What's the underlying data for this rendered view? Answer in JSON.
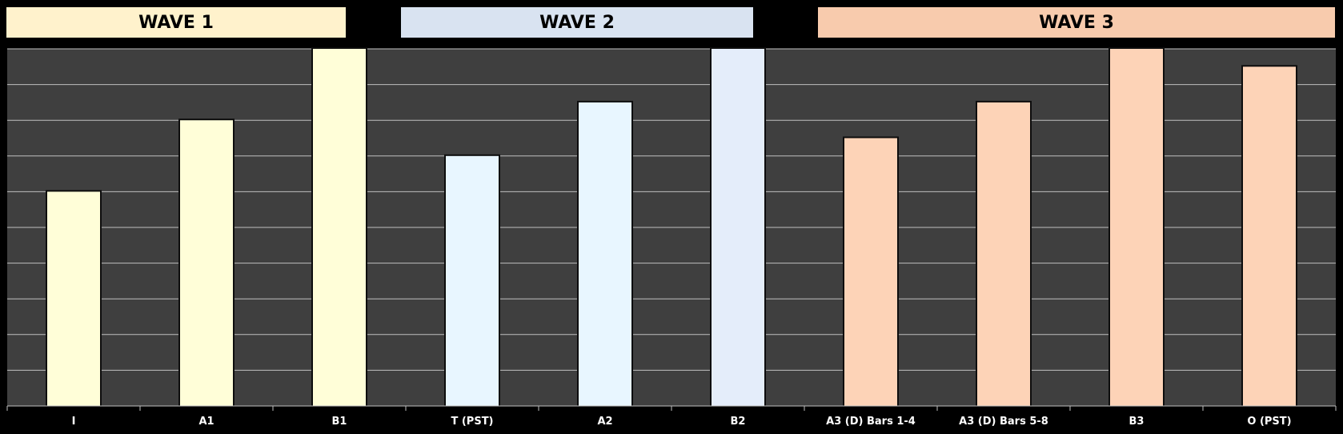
{
  "headers": [
    {
      "label": "WAVE 1",
      "color": "#fff2cc"
    },
    {
      "label": "WAVE 2",
      "color": "#d9e3f1"
    },
    {
      "label": "WAVE 3",
      "color": "#f8cbad"
    }
  ],
  "chart_data": {
    "type": "bar",
    "categories": [
      "I",
      "A1",
      "B1",
      "T (PST)",
      "A2",
      "B2",
      "A3 (D) Bars 1-4",
      "A3 (D) Bars 5-8",
      "B3",
      "O (PST)"
    ],
    "values": [
      6,
      8,
      10,
      7,
      8.5,
      10,
      7.5,
      8.5,
      10,
      9.5
    ],
    "bar_colors": [
      "#fffed8",
      "#fffed8",
      "#fffed8",
      "#e8f6ff",
      "#e8f6ff",
      "#e4edfa",
      "#fdd3b7",
      "#fdd3b7",
      "#fdd3b7",
      "#fdd3b7"
    ],
    "ylim": [
      0,
      10
    ],
    "grid": true,
    "background": "#3f3f3f",
    "title": "",
    "xlabel": "",
    "ylabel": ""
  }
}
